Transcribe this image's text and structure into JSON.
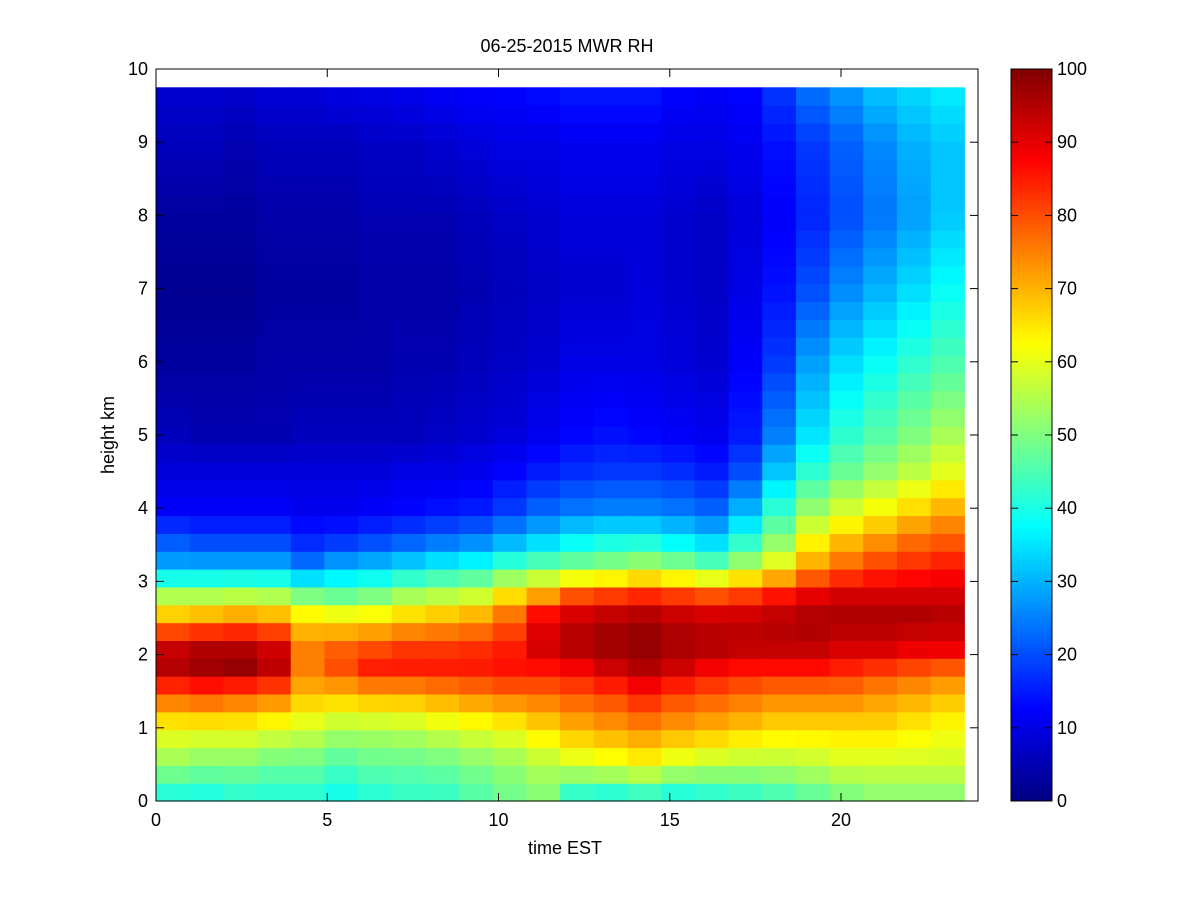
{
  "chart_data": {
    "type": "heatmap",
    "title": "06-25-2015 MWR RH",
    "xlabel": "time EST",
    "ylabel": "height km",
    "xlim": [
      0,
      24
    ],
    "ylim": [
      0,
      10
    ],
    "x_ticks": [
      0,
      5,
      10,
      15,
      20
    ],
    "y_ticks": [
      0,
      1,
      2,
      3,
      4,
      5,
      6,
      7,
      8,
      9,
      10
    ],
    "data_extent": {
      "x": [
        0,
        23.6
      ],
      "y": [
        0,
        9.75
      ]
    },
    "colorbar": {
      "range": [
        0,
        100
      ],
      "ticks": [
        0,
        10,
        20,
        30,
        40,
        50,
        60,
        70,
        80,
        90,
        100
      ],
      "colormap": "jet"
    },
    "time_columns_hr": [
      0.5,
      1.5,
      2.5,
      3.5,
      4.5,
      5.5,
      6.5,
      7.5,
      8.5,
      9.5,
      10.5,
      11.5,
      12.5,
      13.5,
      14.5,
      15.5,
      16.5,
      17.5,
      18.5,
      19.5,
      20.5,
      21.5,
      22.5,
      23.5
    ],
    "rh_profiles": {
      "height_km": [
        0.0,
        0.5,
        1.0,
        1.5,
        1.8,
        2.1,
        2.5,
        2.8,
        3.2,
        3.6,
        4.0,
        4.5,
        5.0,
        6.0,
        7.0,
        8.0,
        9.0,
        9.75
      ],
      "columns": [
        [
          38,
          52,
          62,
          80,
          95,
          93,
          70,
          55,
          30,
          20,
          12,
          9,
          6,
          3,
          2,
          3,
          6,
          8
        ],
        [
          38,
          50,
          62,
          82,
          97,
          95,
          72,
          55,
          30,
          18,
          12,
          9,
          5,
          3,
          2,
          3,
          6,
          8
        ],
        [
          40,
          50,
          62,
          80,
          98,
          95,
          74,
          56,
          30,
          18,
          12,
          9,
          5,
          3,
          2,
          3,
          5,
          8
        ],
        [
          40,
          48,
          60,
          78,
          94,
          92,
          72,
          55,
          30,
          18,
          12,
          9,
          5,
          4,
          3,
          4,
          6,
          9
        ],
        [
          40,
          48,
          58,
          70,
          75,
          75,
          66,
          50,
          25,
          15,
          11,
          9,
          6,
          4,
          3,
          4,
          6,
          9
        ],
        [
          38,
          45,
          55,
          70,
          80,
          78,
          64,
          48,
          30,
          16,
          11,
          9,
          6,
          4,
          3,
          4,
          6,
          10
        ],
        [
          40,
          47,
          55,
          72,
          85,
          80,
          65,
          50,
          32,
          18,
          12,
          9,
          6,
          4,
          4,
          5,
          7,
          10
        ],
        [
          42,
          47,
          56,
          72,
          85,
          82,
          68,
          54,
          35,
          20,
          13,
          10,
          6,
          5,
          4,
          5,
          7,
          11
        ],
        [
          42,
          48,
          58,
          74,
          85,
          82,
          70,
          56,
          38,
          22,
          14,
          10,
          7,
          5,
          4,
          5,
          8,
          12
        ],
        [
          45,
          50,
          60,
          76,
          85,
          83,
          72,
          58,
          40,
          24,
          15,
          11,
          8,
          6,
          5,
          6,
          9,
          13
        ],
        [
          48,
          52,
          62,
          78,
          86,
          85,
          78,
          66,
          45,
          28,
          18,
          13,
          9,
          7,
          6,
          7,
          10,
          13
        ],
        [
          50,
          55,
          66,
          78,
          86,
          92,
          90,
          72,
          48,
          32,
          22,
          15,
          11,
          8,
          7,
          8,
          10,
          14
        ],
        [
          38,
          58,
          70,
          80,
          88,
          95,
          94,
          80,
          50,
          36,
          24,
          17,
          13,
          10,
          8,
          9,
          11,
          15
        ],
        [
          36,
          60,
          72,
          82,
          92,
          97,
          96,
          82,
          52,
          38,
          25,
          18,
          14,
          10,
          8,
          9,
          11,
          15
        ],
        [
          38,
          62,
          74,
          86,
          95,
          98,
          97,
          84,
          55,
          38,
          25,
          18,
          13,
          10,
          9,
          9,
          11,
          15
        ],
        [
          36,
          58,
          72,
          82,
          92,
          96,
          95,
          82,
          52,
          35,
          24,
          17,
          12,
          9,
          8,
          8,
          10,
          13
        ],
        [
          38,
          56,
          70,
          80,
          88,
          95,
          94,
          80,
          48,
          32,
          22,
          15,
          11,
          8,
          7,
          7,
          10,
          12
        ],
        [
          40,
          55,
          68,
          78,
          86,
          94,
          94,
          82,
          55,
          40,
          30,
          20,
          15,
          12,
          10,
          9,
          11,
          13
        ],
        [
          42,
          55,
          66,
          76,
          86,
          94,
          95,
          86,
          62,
          50,
          42,
          32,
          25,
          18,
          14,
          12,
          14,
          18
        ],
        [
          45,
          56,
          66,
          76,
          86,
          94,
          96,
          90,
          72,
          62,
          52,
          42,
          35,
          28,
          20,
          16,
          18,
          24
        ],
        [
          48,
          58,
          66,
          76,
          84,
          92,
          96,
          92,
          78,
          68,
          58,
          48,
          42,
          34,
          26,
          20,
          22,
          28
        ],
        [
          50,
          58,
          66,
          74,
          82,
          92,
          96,
          92,
          82,
          72,
          62,
          52,
          46,
          38,
          30,
          24,
          26,
          32
        ],
        [
          50,
          58,
          64,
          72,
          80,
          90,
          96,
          92,
          84,
          76,
          66,
          56,
          50,
          42,
          34,
          28,
          30,
          34
        ],
        [
          50,
          58,
          62,
          70,
          78,
          90,
          95,
          92,
          86,
          78,
          70,
          60,
          54,
          45,
          38,
          32,
          32,
          36
        ]
      ]
    }
  }
}
